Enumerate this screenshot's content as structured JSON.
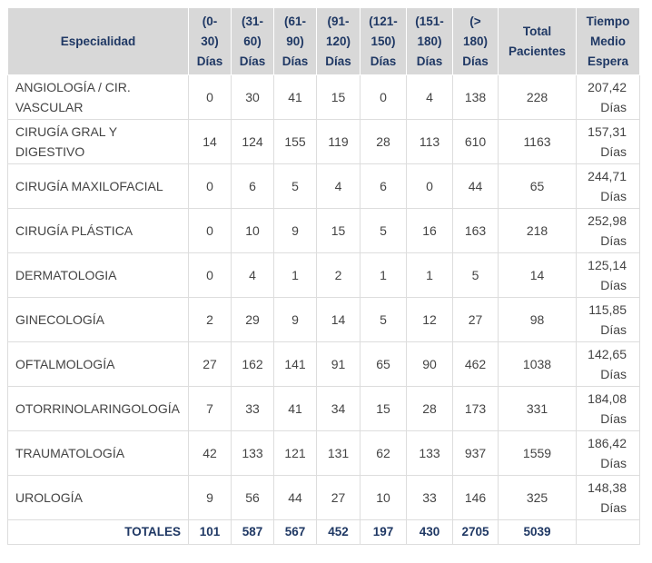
{
  "headers": {
    "especialidad": "Especialidad",
    "r0_30": [
      "(0-",
      "30)",
      "Días"
    ],
    "r31_60": [
      "(31-",
      "60)",
      "Días"
    ],
    "r61_90": [
      "(61-",
      "90)",
      "Días"
    ],
    "r91_120": [
      "(91-",
      "120)",
      "Días"
    ],
    "r121_150": [
      "(121-",
      "150)",
      "Días"
    ],
    "r151_180": [
      "(151-",
      "180)",
      "Días"
    ],
    "r180": [
      "(>",
      "180)",
      "Días"
    ],
    "total": [
      "Total",
      "Pacientes"
    ],
    "tiempo": [
      "Tiempo",
      "Medio",
      "Espera"
    ]
  },
  "rows": [
    {
      "esp": [
        "ANGIOLOGÍA / CIR.",
        "VASCULAR"
      ],
      "v": [
        "0",
        "30",
        "41",
        "15",
        "0",
        "4",
        "138",
        "228"
      ],
      "wait": [
        "207,42",
        "Días"
      ]
    },
    {
      "esp": [
        "CIRUGÍA GRAL Y",
        "DIGESTIVO"
      ],
      "v": [
        "14",
        "124",
        "155",
        "119",
        "28",
        "113",
        "610",
        "1163"
      ],
      "wait": [
        "157,31",
        "Días"
      ]
    },
    {
      "esp": [
        "CIRUGÍA MAXILOFACIAL"
      ],
      "v": [
        "0",
        "6",
        "5",
        "4",
        "6",
        "0",
        "44",
        "65"
      ],
      "wait": [
        "244,71",
        "Días"
      ]
    },
    {
      "esp": [
        "CIRUGÍA PLÁSTICA"
      ],
      "v": [
        "0",
        "10",
        "9",
        "15",
        "5",
        "16",
        "163",
        "218"
      ],
      "wait": [
        "252,98",
        "Días"
      ]
    },
    {
      "esp": [
        "DERMATOLOGIA"
      ],
      "v": [
        "0",
        "4",
        "1",
        "2",
        "1",
        "1",
        "5",
        "14"
      ],
      "wait": [
        "125,14",
        "Días"
      ]
    },
    {
      "esp": [
        "GINECOLOGÍA"
      ],
      "v": [
        "2",
        "29",
        "9",
        "14",
        "5",
        "12",
        "27",
        "98"
      ],
      "wait": [
        "115,85",
        "Días"
      ]
    },
    {
      "esp": [
        "OFTALMOLOGÍA"
      ],
      "v": [
        "27",
        "162",
        "141",
        "91",
        "65",
        "90",
        "462",
        "1038"
      ],
      "wait": [
        "142,65",
        "Días"
      ]
    },
    {
      "esp": [
        "OTORRINOLARINGOLOGÍA"
      ],
      "v": [
        "7",
        "33",
        "41",
        "34",
        "15",
        "28",
        "173",
        "331"
      ],
      "wait": [
        "184,08",
        "Días"
      ]
    },
    {
      "esp": [
        "TRAUMATOLOGÍA"
      ],
      "v": [
        "42",
        "133",
        "121",
        "131",
        "62",
        "133",
        "937",
        "1559"
      ],
      "wait": [
        "186,42",
        "Días"
      ]
    },
    {
      "esp": [
        "UROLOGÍA"
      ],
      "v": [
        "9",
        "56",
        "44",
        "27",
        "10",
        "33",
        "146",
        "325"
      ],
      "wait": [
        "148,38",
        "Días"
      ]
    }
  ],
  "totals": {
    "label": "TOTALES",
    "v": [
      "101",
      "587",
      "567",
      "452",
      "197",
      "430",
      "2705",
      "5039"
    ],
    "wait": ""
  }
}
